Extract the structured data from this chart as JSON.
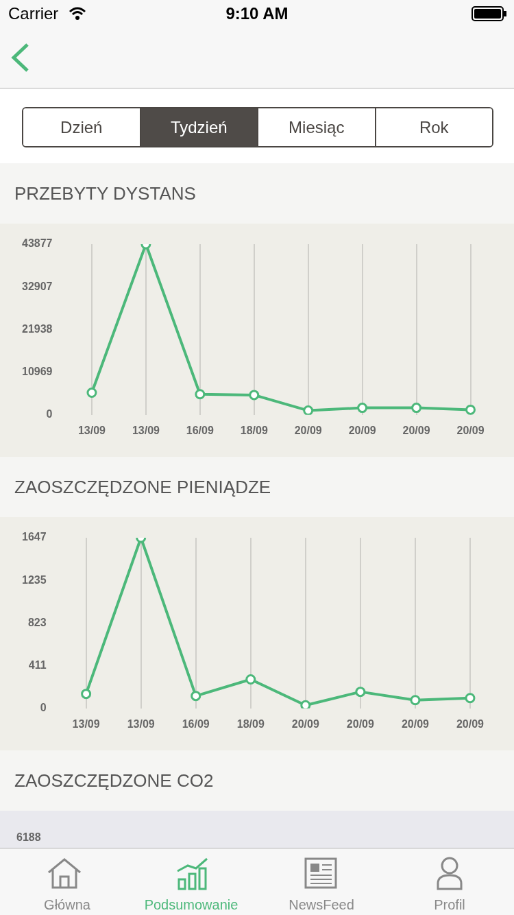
{
  "chart_data": [
    {
      "type": "line",
      "title": "PRZEBYTY DYSTANS",
      "categories": [
        "13/09",
        "13/09",
        "16/09",
        "18/09",
        "20/09",
        "20/09",
        "20/09",
        "20/09"
      ],
      "series": [
        {
          "color": "#4cb87a",
          "values": [
            5700,
            43877,
            5300,
            5100,
            1100,
            1800,
            1800,
            1300
          ]
        }
      ],
      "ylim": [
        0,
        43877
      ],
      "yticks": [
        0,
        10969,
        21938,
        32907,
        43877
      ],
      "grid": "x",
      "marker": "circle",
      "annotations": [
        "Carrier",
        "9:10 AM",
        "Dzień",
        "Tydzień",
        "Miesiąc",
        "Rok",
        "Główna",
        "Podsumowanie",
        "NewsFeed",
        "Profil"
      ]
    },
    {
      "type": "line",
      "title": "ZAOSZCZĘDZONE PIENIĄDZE",
      "categories": [
        "13/09",
        "13/09",
        "16/09",
        "18/09",
        "20/09",
        "20/09",
        "20/09",
        "20/09"
      ],
      "series": [
        {
          "color": "#4cb87a",
          "values": [
            140,
            1647,
            120,
            280,
            30,
            160,
            80,
            100
          ]
        }
      ],
      "ylim": [
        0,
        1647
      ],
      "yticks": [
        0,
        411,
        823,
        1235,
        1647
      ],
      "grid": "x",
      "marker": "circle"
    },
    {
      "type": "other",
      "title": "ZAOSZCZĘDZONE CO2",
      "annotations": [
        "6188"
      ]
    }
  ]
}
